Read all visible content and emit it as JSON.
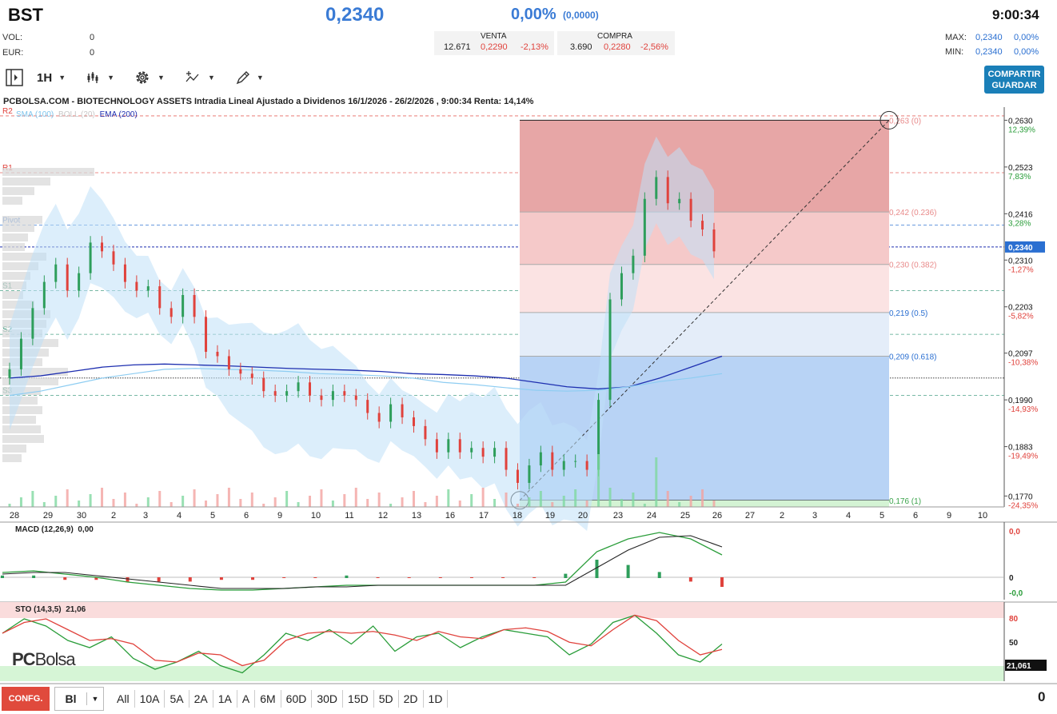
{
  "header": {
    "ticker": "BST",
    "price": "0,2340",
    "change_pct": "0,00%",
    "change_abs": "(0,0000)",
    "time": "9:00:34"
  },
  "stats": {
    "vol_label": "VOL:",
    "vol_value": "0",
    "eur_label": "EUR:",
    "eur_value": "0",
    "max_label": "MAX:",
    "max_value": "0,2340",
    "max_pct": "0,00%",
    "min_label": "MIN:",
    "min_value": "0,2340",
    "min_pct": "0,00%"
  },
  "order_book": {
    "sell_label": "VENTA",
    "sell_qty": "12.671",
    "sell_price": "0,2290",
    "sell_pct": "-2,13%",
    "buy_label": "COMPRA",
    "buy_qty": "3.690",
    "buy_price": "0,2280",
    "buy_pct": "-2,56%"
  },
  "toolbar": {
    "interval": "1H",
    "share_line1": "COMPARTIR",
    "share_line2": "GUARDAR"
  },
  "chart_title": "PCBOLSA.COM - BIOTECHNOLOGY ASSETS Intradia Lineal Ajustado a Dividenos 16/1/2026 - 26/2/2026 , 9:00:34 Renta: 14,14%",
  "legend": {
    "sma": "SMA (100)",
    "boll": "BOLL (20)",
    "ema": "EMA (200)"
  },
  "colors": {
    "accent": "#3a7bd5",
    "up": "#2e9e5b",
    "down": "#e0423c",
    "share": "#1a7fb8"
  },
  "chart_data": {
    "type": "candlestick",
    "y_ticks": [
      {
        "price": "0,2630",
        "pct": "12,39%"
      },
      {
        "price": "0,2523",
        "pct": "7,83%"
      },
      {
        "price": "0,2416",
        "pct": "3,28%"
      },
      {
        "price": "0,2310",
        "pct": "-1,27%"
      },
      {
        "price": "0,2203",
        "pct": "-5,82%"
      },
      {
        "price": "0,2097",
        "pct": "-10,38%"
      },
      {
        "price": "0,1990",
        "pct": "-14,93%"
      },
      {
        "price": "0,1883",
        "pct": "-19,49%"
      },
      {
        "price": "0,1770",
        "pct": "-24,35%"
      }
    ],
    "current_price_label": "0,2340",
    "x_ticks": [
      "28",
      "29",
      "30",
      "2",
      "3",
      "4",
      "5",
      "6",
      "9",
      "10",
      "11",
      "12",
      "13",
      "16",
      "17",
      "18",
      "19",
      "20",
      "23",
      "24",
      "25",
      "26",
      "27",
      "2",
      "3",
      "4",
      "5",
      "6",
      "9",
      "10"
    ],
    "pivots": [
      {
        "name": "R2",
        "value": 0.264
      },
      {
        "name": "R1",
        "value": 0.251
      },
      {
        "name": "Pivot",
        "value": 0.239
      },
      {
        "name": "S1",
        "value": 0.224
      },
      {
        "name": "S2",
        "value": 0.214
      },
      {
        "name": "S3",
        "value": 0.2
      }
    ],
    "fibonacci": [
      {
        "label": "0,263 (0)",
        "value": 0.263
      },
      {
        "label": "0,242 (0.236)",
        "value": 0.242
      },
      {
        "label": "0,230 (0.382)",
        "value": 0.23
      },
      {
        "label": "0,219 (0.5)",
        "value": 0.219
      },
      {
        "label": "0,209 (0.618)",
        "value": 0.209
      },
      {
        "label": "0,176 (1)",
        "value": 0.176
      }
    ],
    "ylim": [
      0.1745,
      0.266
    ],
    "closes": [
      0.206,
      0.213,
      0.22,
      0.226,
      0.23,
      0.224,
      0.228,
      0.235,
      0.233,
      0.23,
      0.226,
      0.224,
      0.225,
      0.22,
      0.218,
      0.223,
      0.218,
      0.21,
      0.209,
      0.206,
      0.205,
      0.204,
      0.201,
      0.2,
      0.201,
      0.203,
      0.2,
      0.199,
      0.201,
      0.2,
      0.199,
      0.196,
      0.194,
      0.198,
      0.195,
      0.193,
      0.19,
      0.187,
      0.19,
      0.187,
      0.188,
      0.186,
      0.188,
      0.183,
      0.18,
      0.184,
      0.187,
      0.183,
      0.185,
      0.185,
      0.183,
      0.199,
      0.222,
      0.228,
      0.232,
      0.245,
      0.25,
      0.244,
      0.245,
      0.24,
      0.238,
      0.233
    ]
  },
  "macd": {
    "label": "MACD (12,26,9)",
    "value": "0,00",
    "ticks": [
      "0,0",
      "0",
      "-0,0"
    ]
  },
  "sto": {
    "label": "STO (14,3,5)",
    "value": "21,06",
    "ticks": [
      "80",
      "50"
    ],
    "current": "21,061"
  },
  "watermark": {
    "pc": "PC",
    "bolsa": "Bolsa"
  },
  "bottom": {
    "conf": "CONFG.",
    "select": "Bl",
    "ranges": [
      "All",
      "10A",
      "5A",
      "2A",
      "1A",
      "A",
      "6M",
      "60D",
      "30D",
      "15D",
      "5D",
      "2D",
      "1D"
    ],
    "right_value": "0"
  }
}
